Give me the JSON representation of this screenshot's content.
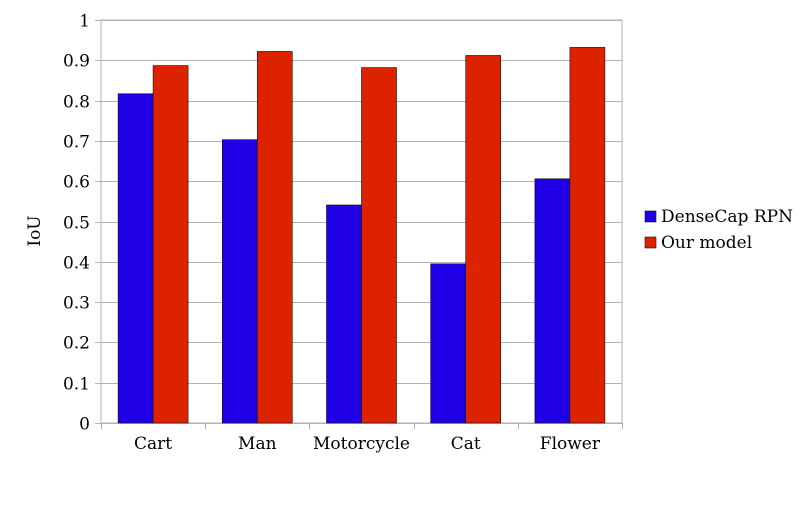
{
  "chart_data": {
    "type": "bar",
    "title": "",
    "xlabel": "",
    "ylabel": "IoU",
    "ylim": [
      0,
      1
    ],
    "yticks": [
      0,
      0.1,
      0.2,
      0.3,
      0.4,
      0.5,
      0.6,
      0.7,
      0.8,
      0.9,
      1
    ],
    "ytick_labels": [
      "0",
      "0.1",
      "0.2",
      "0.3",
      "0.4",
      "0.5",
      "0.6",
      "0.7",
      "0.8",
      "0.9",
      "1"
    ],
    "grid": true,
    "legend_position": "right",
    "categories": [
      "Cart",
      "Man",
      "Motorcycle",
      "Cat",
      "Flower"
    ],
    "series": [
      {
        "name": "DenseCap RPN",
        "color": "#1f00e6",
        "values": [
          0.817,
          0.703,
          0.541,
          0.395,
          0.606
        ]
      },
      {
        "name": "Our model",
        "color": "#dd2200",
        "values": [
          0.887,
          0.922,
          0.882,
          0.912,
          0.932
        ]
      }
    ]
  }
}
